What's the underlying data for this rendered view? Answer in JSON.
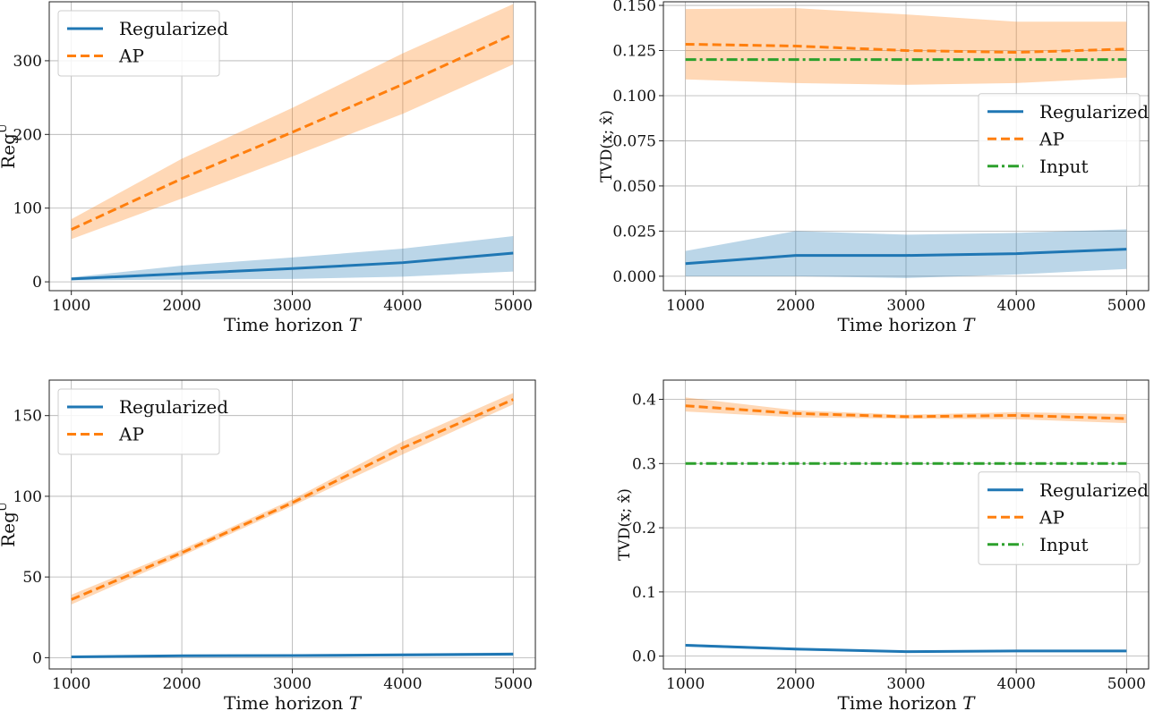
{
  "chart_data": [
    {
      "id": "tl",
      "type": "line",
      "xlabel": "Time horizon T",
      "ylabel": "Reg^U",
      "x": [
        1000,
        2000,
        3000,
        4000,
        5000
      ],
      "xlim": [
        800,
        5200
      ],
      "ylim": [
        -12,
        380
      ],
      "xticks": [
        1000,
        2000,
        3000,
        4000,
        5000
      ],
      "yticks": [
        0,
        100,
        200,
        300
      ],
      "ytick_labels": [
        "0",
        "100",
        "200",
        "300"
      ],
      "legend_position": "top-left",
      "series": [
        {
          "name": "Regularized",
          "color": "#1f77b4",
          "dash": "solid",
          "values": [
            4,
            11,
            18,
            26,
            39
          ],
          "band_lower": [
            2,
            3,
            4,
            7,
            14
          ],
          "band_upper": [
            6,
            22,
            33,
            45,
            62
          ]
        },
        {
          "name": "AP",
          "color": "#ff7f0e",
          "dash": "dashed",
          "values": [
            71,
            140,
            203,
            268,
            336
          ],
          "band_lower": [
            58,
            113,
            170,
            228,
            295
          ],
          "band_upper": [
            85,
            167,
            236,
            310,
            377
          ]
        }
      ]
    },
    {
      "id": "tr",
      "type": "line",
      "xlabel": "Time horizon T",
      "ylabel": "TVD(x; x̂)",
      "x": [
        1000,
        2000,
        3000,
        4000,
        5000
      ],
      "xlim": [
        800,
        5200
      ],
      "ylim": [
        -0.008,
        0.152
      ],
      "xticks": [
        1000,
        2000,
        3000,
        4000,
        5000
      ],
      "yticks": [
        0.0,
        0.025,
        0.05,
        0.075,
        0.1,
        0.125,
        0.15
      ],
      "ytick_labels": [
        "0.000",
        "0.025",
        "0.050",
        "0.075",
        "0.100",
        "0.125",
        "0.150"
      ],
      "legend_position": "center-right",
      "series": [
        {
          "name": "Regularized",
          "color": "#1f77b4",
          "dash": "solid",
          "values": [
            0.007,
            0.0115,
            0.0115,
            0.0125,
            0.015
          ],
          "band_lower": [
            0.0,
            0.0,
            -0.001,
            0.001,
            0.004
          ],
          "band_upper": [
            0.014,
            0.025,
            0.023,
            0.024,
            0.026
          ]
        },
        {
          "name": "AP",
          "color": "#ff7f0e",
          "dash": "dashed",
          "values": [
            0.1285,
            0.1275,
            0.125,
            0.124,
            0.1258
          ],
          "band_lower": [
            0.109,
            0.107,
            0.106,
            0.107,
            0.11
          ],
          "band_upper": [
            0.148,
            0.1485,
            0.145,
            0.141,
            0.141
          ]
        },
        {
          "name": "Input",
          "color": "#2ca02c",
          "dash": "dashdot",
          "values": [
            0.12,
            0.12,
            0.12,
            0.12,
            0.12
          ]
        }
      ]
    },
    {
      "id": "bl",
      "type": "line",
      "xlabel": "Time horizon T",
      "ylabel": "Reg^U",
      "x": [
        1000,
        2000,
        3000,
        4000,
        5000
      ],
      "xlim": [
        800,
        5200
      ],
      "ylim": [
        -7,
        172
      ],
      "xticks": [
        1000,
        2000,
        3000,
        4000,
        5000
      ],
      "yticks": [
        0,
        50,
        100,
        150
      ],
      "ytick_labels": [
        "0",
        "50",
        "100",
        "150"
      ],
      "legend_position": "top-left",
      "series": [
        {
          "name": "Regularized",
          "color": "#1f77b4",
          "dash": "solid",
          "values": [
            0.5,
            1.2,
            1.3,
            1.7,
            2.2
          ],
          "band_lower": [
            0.1,
            0.5,
            0.5,
            0.8,
            1.2
          ],
          "band_upper": [
            0.9,
            1.9,
            2.1,
            2.6,
            3.2
          ]
        },
        {
          "name": "AP",
          "color": "#ff7f0e",
          "dash": "dashed",
          "values": [
            36,
            65,
            96,
            130,
            160
          ],
          "band_lower": [
            33,
            63,
            94,
            126,
            157
          ],
          "band_upper": [
            39,
            67,
            98,
            134,
            164
          ]
        }
      ]
    },
    {
      "id": "br",
      "type": "line",
      "xlabel": "Time horizon T",
      "ylabel": "TVD(x; x̂)",
      "x": [
        1000,
        2000,
        3000,
        4000,
        5000
      ],
      "xlim": [
        800,
        5200
      ],
      "ylim": [
        -0.02,
        0.43
      ],
      "xticks": [
        1000,
        2000,
        3000,
        4000,
        5000
      ],
      "yticks": [
        0.0,
        0.1,
        0.2,
        0.3,
        0.4
      ],
      "ytick_labels": [
        "0.0",
        "0.1",
        "0.2",
        "0.3",
        "0.4"
      ],
      "legend_position": "center-right",
      "series": [
        {
          "name": "Regularized",
          "color": "#1f77b4",
          "dash": "solid",
          "values": [
            0.017,
            0.011,
            0.007,
            0.008,
            0.008
          ],
          "band_lower": [
            0.015,
            0.009,
            0.006,
            0.007,
            0.007
          ],
          "band_upper": [
            0.019,
            0.013,
            0.008,
            0.009,
            0.009
          ]
        },
        {
          "name": "AP",
          "color": "#ff7f0e",
          "dash": "dashed",
          "values": [
            0.39,
            0.378,
            0.373,
            0.375,
            0.37
          ],
          "band_lower": [
            0.381,
            0.372,
            0.37,
            0.369,
            0.363
          ],
          "band_upper": [
            0.403,
            0.383,
            0.376,
            0.38,
            0.377
          ]
        },
        {
          "name": "Input",
          "color": "#2ca02c",
          "dash": "dashdot",
          "values": [
            0.3,
            0.3,
            0.3,
            0.3,
            0.3
          ]
        }
      ]
    }
  ]
}
